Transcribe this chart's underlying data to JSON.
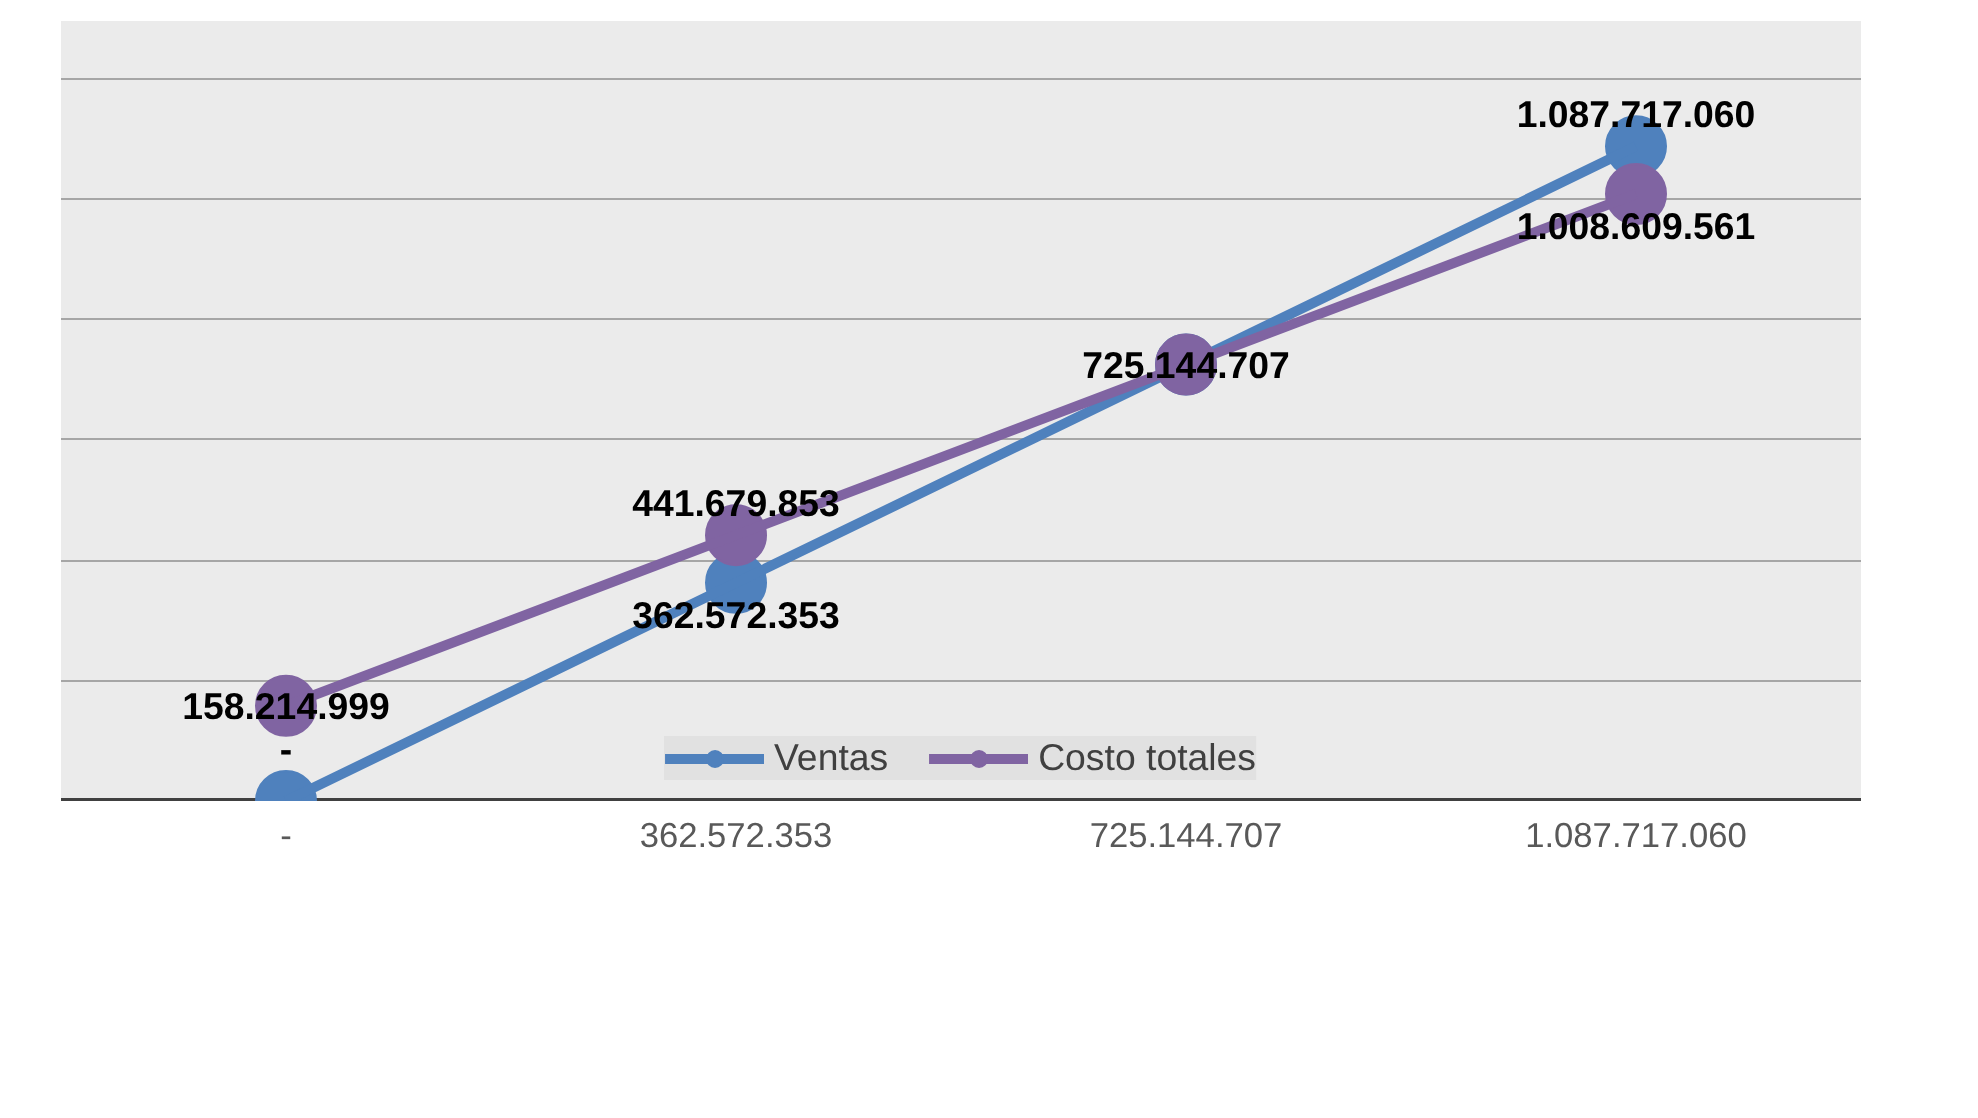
{
  "chart_data": {
    "type": "line",
    "categories": [
      "-",
      "362.572.353",
      "725.144.707",
      "1.087.717.060"
    ],
    "series": [
      {
        "name": "Ventas",
        "color": "#4f81bd",
        "values": [
          0,
          362572353,
          725144707,
          1087717060
        ],
        "value_labels": [
          "-",
          "362.572.353",
          null,
          "1.087.717.060"
        ]
      },
      {
        "name": "Costo totales",
        "color": "#8064a2",
        "values": [
          158214999,
          441679853,
          725144707,
          1008609561
        ],
        "value_labels": [
          "158.214.999",
          "441.679.853",
          "725.144.707",
          "1.008.609.561"
        ]
      }
    ],
    "ylim": [
      0,
      1200000000
    ],
    "yticks": [
      {
        "value": 0,
        "label": null
      },
      {
        "value": 200000000,
        "label": null
      },
      {
        "value": 400000000,
        "label": null
      },
      {
        "value": 600000000,
        "label": null
      },
      {
        "value": 800000000,
        "label": null
      },
      {
        "value": 1000000000,
        "label": null
      },
      {
        "value": 1200000000,
        "label": null
      }
    ],
    "tick_labels": "x",
    "grid": "y",
    "legend": "bottom",
    "marker": "circle",
    "line_style": "solid"
  }
}
